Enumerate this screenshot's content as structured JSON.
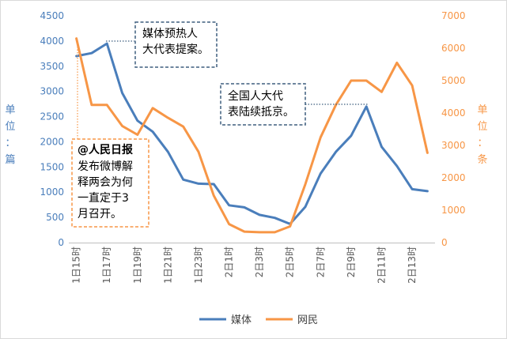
{
  "chart_data": {
    "type": "line",
    "y_left": {
      "label": "单位：篇",
      "ylim": [
        0,
        4500
      ],
      "ticks": [
        0,
        500,
        1000,
        1500,
        2000,
        2500,
        3000,
        3500,
        4000,
        4500
      ],
      "color": "#4a7ebb"
    },
    "y_right": {
      "label": "单位：条",
      "ylim": [
        0,
        7000
      ],
      "ticks": [
        0,
        1000,
        2000,
        3000,
        4000,
        5000,
        6000,
        7000
      ],
      "color": "#f79646"
    },
    "x_tick_labels": [
      "1日15时",
      "1日17时",
      "1日19时",
      "1日21时",
      "1日23时",
      "2日1时",
      "2日3时",
      "2日5时",
      "2日7时",
      "2日9时",
      "2日11时",
      "2日13时"
    ],
    "x_count": 24,
    "series": [
      {
        "name": "媒体",
        "axis": "left",
        "color": "#4a7ebb",
        "values": [
          3700,
          3760,
          3950,
          2970,
          2420,
          2200,
          1800,
          1250,
          1170,
          1160,
          740,
          700,
          550,
          490,
          370,
          710,
          1370,
          1800,
          2120,
          2700,
          1900,
          1520,
          1060,
          1020
        ]
      },
      {
        "name": "网民",
        "axis": "right",
        "color": "#f79646",
        "values": [
          6300,
          4250,
          4250,
          3600,
          3330,
          4150,
          3850,
          3580,
          2800,
          1450,
          570,
          340,
          320,
          320,
          500,
          1800,
          3250,
          4250,
          5000,
          5000,
          4650,
          5550,
          4850,
          2770
        ]
      }
    ],
    "legend_position": "bottom-center",
    "annotations": [
      {
        "id": "ann1",
        "lines": [
          "媒体预热人",
          "大代表提案。"
        ],
        "style": "dashed-blue"
      },
      {
        "id": "ann2",
        "lines": [
          "全国人大代",
          "表陆续抵京。"
        ],
        "style": "dashed-blue"
      },
      {
        "id": "ann3",
        "title": "@人民日报",
        "lines": [
          "发布微博解",
          "释两会为何",
          "一直定于3",
          "月召开。"
        ],
        "style": "dashed-orange"
      }
    ]
  }
}
